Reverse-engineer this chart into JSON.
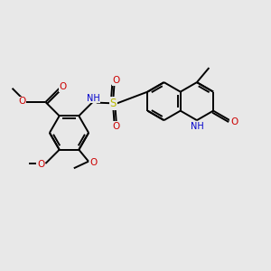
{
  "bg_color": "#e8e8e8",
  "bond_color": "#000000",
  "lw": 1.4,
  "colors": {
    "O": "#cc0000",
    "N": "#0000cc",
    "S": "#b8b800",
    "H": "#7a9a9a"
  },
  "figsize": [
    3.0,
    3.0
  ],
  "dpi": 100,
  "xlim": [
    0,
    10
  ],
  "ylim": [
    0,
    10
  ]
}
